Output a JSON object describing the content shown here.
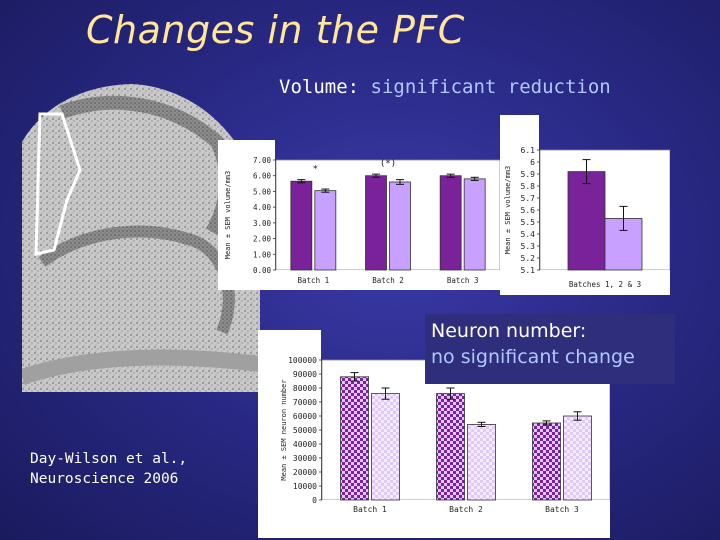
{
  "slide": {
    "title": "Changes in the PFC",
    "subtitle_label": "Volume: ",
    "subtitle_highlight": "significant reduction",
    "citation": "Day-Wilson et al.,\nNeuroscience 2006",
    "callout_line1": "Neuron number:",
    "callout_line2": "no significant change"
  },
  "colors": {
    "background": "#2a2a88",
    "title": "#ffe699",
    "highlight": "#b0c8ff",
    "bar_dark": "#7a2299",
    "bar_light": "#c8a0ff",
    "pattern_dark": "#7a2299",
    "pattern_light": "#e0c8ff"
  },
  "chart_data": [
    {
      "type": "bar",
      "ylabel": "Mean ± SEM volume/mm3",
      "ylim": [
        0,
        7
      ],
      "yticks": [
        "0.00",
        "1.00",
        "2.00",
        "3.00",
        "4.00",
        "5.00",
        "6.00",
        "7.00"
      ],
      "categories": [
        "Batch 1",
        "Batch 2",
        "Batch 3"
      ],
      "series": [
        {
          "values": [
            5.65,
            6.0,
            6.0
          ],
          "err": [
            0.1,
            0.1,
            0.1
          ]
        },
        {
          "values": [
            5.05,
            5.6,
            5.8
          ],
          "err": [
            0.1,
            0.15,
            0.1
          ]
        }
      ],
      "annotations": [
        {
          "text": "*",
          "category": 0
        },
        {
          "text": "(*)",
          "category": 1
        }
      ],
      "grid": false
    },
    {
      "type": "bar",
      "ylabel": "Mean ± SEM volume/mm3",
      "ylim": [
        5.1,
        6.1
      ],
      "yticks": [
        "5.1",
        "5.2",
        "5.3",
        "5.4",
        "5.5",
        "5.6",
        "5.7",
        "5.8",
        "5.9",
        "6",
        "6.1"
      ],
      "categories": [
        "Batches 1, 2 & 3"
      ],
      "series": [
        {
          "values": [
            5.92
          ],
          "err": [
            0.1
          ]
        },
        {
          "values": [
            5.53
          ],
          "err": [
            0.1
          ]
        }
      ],
      "grid": false
    },
    {
      "type": "bar",
      "ylabel": "Mean ± SEM neuron number",
      "ylim": [
        0,
        100000
      ],
      "yticks": [
        "0",
        "10000",
        "20000",
        "30000",
        "40000",
        "50000",
        "60000",
        "70000",
        "80000",
        "90000",
        "100000"
      ],
      "categories": [
        "Batch 1",
        "Batch 2",
        "Batch 3"
      ],
      "series": [
        {
          "values": [
            88000,
            76000,
            55000
          ],
          "err": [
            3000,
            4000,
            1500
          ]
        },
        {
          "values": [
            76000,
            54000,
            60000
          ],
          "err": [
            4000,
            1500,
            3000
          ]
        }
      ],
      "grid": false
    }
  ]
}
